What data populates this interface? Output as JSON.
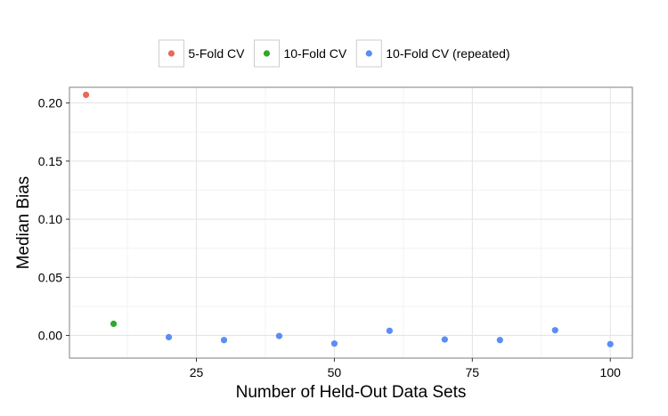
{
  "chart_data": {
    "type": "scatter",
    "xlabel": "Number of Held-Out Data Sets",
    "ylabel": "Median Bias",
    "xlim": [
      2,
      104
    ],
    "ylim": [
      -0.0195,
      0.2135
    ],
    "x_ticks": [
      25,
      50,
      75,
      100
    ],
    "y_ticks": [
      0.0,
      0.05,
      0.1,
      0.15,
      0.2
    ],
    "x_tick_labels": [
      "25",
      "50",
      "75",
      "100"
    ],
    "y_tick_labels": [
      "0.00",
      "0.05",
      "0.10",
      "0.15",
      "0.20"
    ],
    "grid": true,
    "legend_position": "top",
    "series": [
      {
        "name": "5-Fold CV",
        "color": "#E8695C",
        "x": [
          5
        ],
        "y": [
          0.207
        ]
      },
      {
        "name": "10-Fold CV",
        "color": "#2DA82D",
        "x": [
          10
        ],
        "y": [
          0.01
        ]
      },
      {
        "name": "10-Fold CV (repeated)",
        "color": "#5A8DF5",
        "x": [
          20,
          30,
          40,
          50,
          60,
          70,
          80,
          90,
          100
        ],
        "y": [
          -0.0015,
          -0.004,
          -0.0005,
          -0.007,
          0.004,
          -0.0035,
          -0.004,
          0.0045,
          -0.0075
        ]
      }
    ]
  }
}
